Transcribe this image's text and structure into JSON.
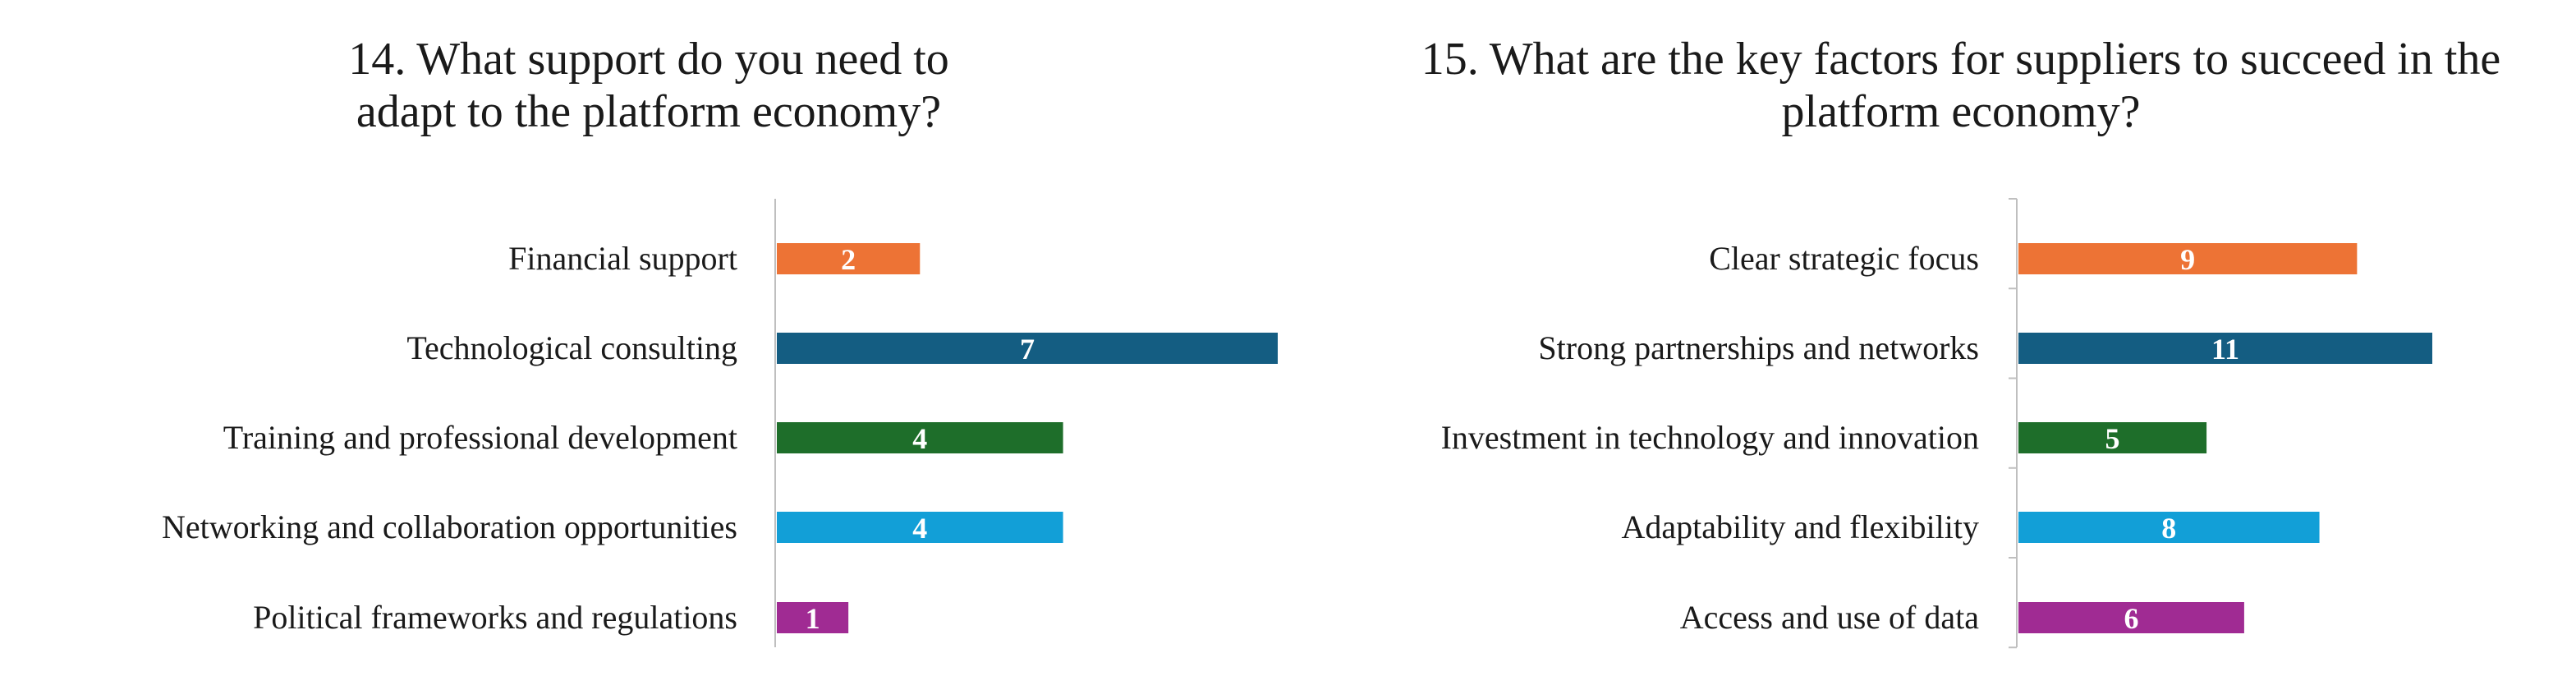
{
  "chart_data": [
    {
      "type": "bar",
      "orientation": "horizontal",
      "title": "14. What support do you need to adapt to the platform economy?",
      "categories": [
        "Financial support",
        "Technological consulting",
        "Training and professional development",
        "Networking and collaboration opportunities",
        "Political frameworks and regulations"
      ],
      "values": [
        2,
        7,
        4,
        4,
        1
      ],
      "colors": [
        "#ED7335",
        "#145D82",
        "#1E6E2A",
        "#129FD7",
        "#A02B93"
      ],
      "xlim": [
        0,
        7
      ],
      "grid": false,
      "legend": "none"
    },
    {
      "type": "bar",
      "orientation": "horizontal",
      "title": "15. What are the key factors for suppliers to succeed in the platform economy?",
      "categories": [
        "Clear strategic focus",
        "Strong partnerships and networks",
        "Investment in technology and innovation",
        "Adaptability and flexibility",
        "Access and use of data"
      ],
      "values": [
        9,
        11,
        5,
        8,
        6
      ],
      "colors": [
        "#ED7335",
        "#145D82",
        "#1E6E2A",
        "#129FD7",
        "#A02B93"
      ],
      "xlim": [
        0,
        11
      ],
      "grid": false,
      "legend": "none"
    }
  ]
}
